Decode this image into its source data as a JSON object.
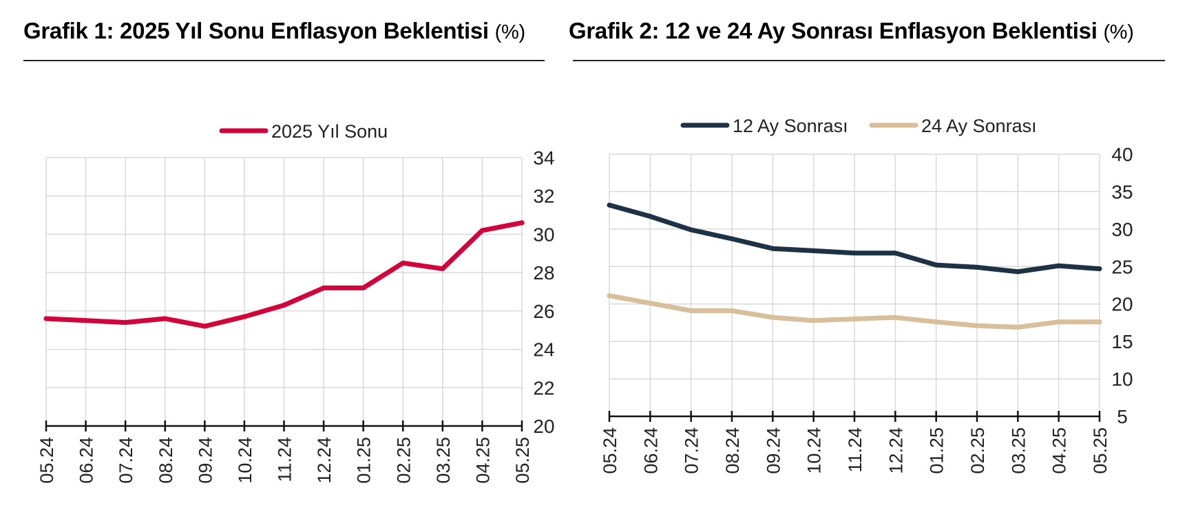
{
  "chart_data": [
    {
      "type": "line",
      "title": "Grafik 1: 2025 Yıl Sonu Enflasyon Beklentisi",
      "unit": "(%)",
      "categories": [
        "05.24",
        "06.24",
        "07.24",
        "08.24",
        "09.24",
        "10.24",
        "11.24",
        "12.24",
        "01.25",
        "02.25",
        "03.25",
        "04.25",
        "05.25"
      ],
      "series": [
        {
          "name": "2025 Yıl Sonu",
          "color": "#d2043c",
          "values": [
            25.6,
            25.5,
            25.4,
            25.6,
            25.2,
            25.7,
            26.3,
            27.2,
            27.2,
            28.5,
            28.2,
            30.2,
            30.6
          ]
        }
      ],
      "ylim": [
        20,
        34
      ],
      "yticks": [
        20,
        22,
        24,
        26,
        28,
        30,
        32,
        34
      ],
      "y_axis_side": "right",
      "grid": true,
      "legend_position": "top-center"
    },
    {
      "type": "line",
      "title": "Grafik 2: 12 ve 24 Ay Sonrası Enflasyon Beklentisi",
      "unit": "(%)",
      "categories": [
        "05.24",
        "06.24",
        "07.24",
        "08.24",
        "09.24",
        "10.24",
        "11.24",
        "12.24",
        "01.25",
        "02.25",
        "03.25",
        "04.25",
        "05.25"
      ],
      "series": [
        {
          "name": "12 Ay Sonrası",
          "color": "#1e3246",
          "values": [
            33.2,
            31.7,
            29.9,
            28.7,
            27.4,
            27.1,
            26.8,
            26.8,
            25.2,
            24.9,
            24.3,
            25.1,
            24.7
          ]
        },
        {
          "name": "24 Ay Sonrası",
          "color": "#d6bf9a",
          "values": [
            21.1,
            20.1,
            19.1,
            19.1,
            18.2,
            17.8,
            18.0,
            18.2,
            17.6,
            17.1,
            16.9,
            17.6,
            17.6
          ]
        }
      ],
      "ylim": [
        5,
        40
      ],
      "yticks": [
        5,
        10,
        15,
        20,
        25,
        30,
        35,
        40
      ],
      "y_axis_side": "right",
      "grid": true,
      "legend_position": "top-center"
    }
  ]
}
